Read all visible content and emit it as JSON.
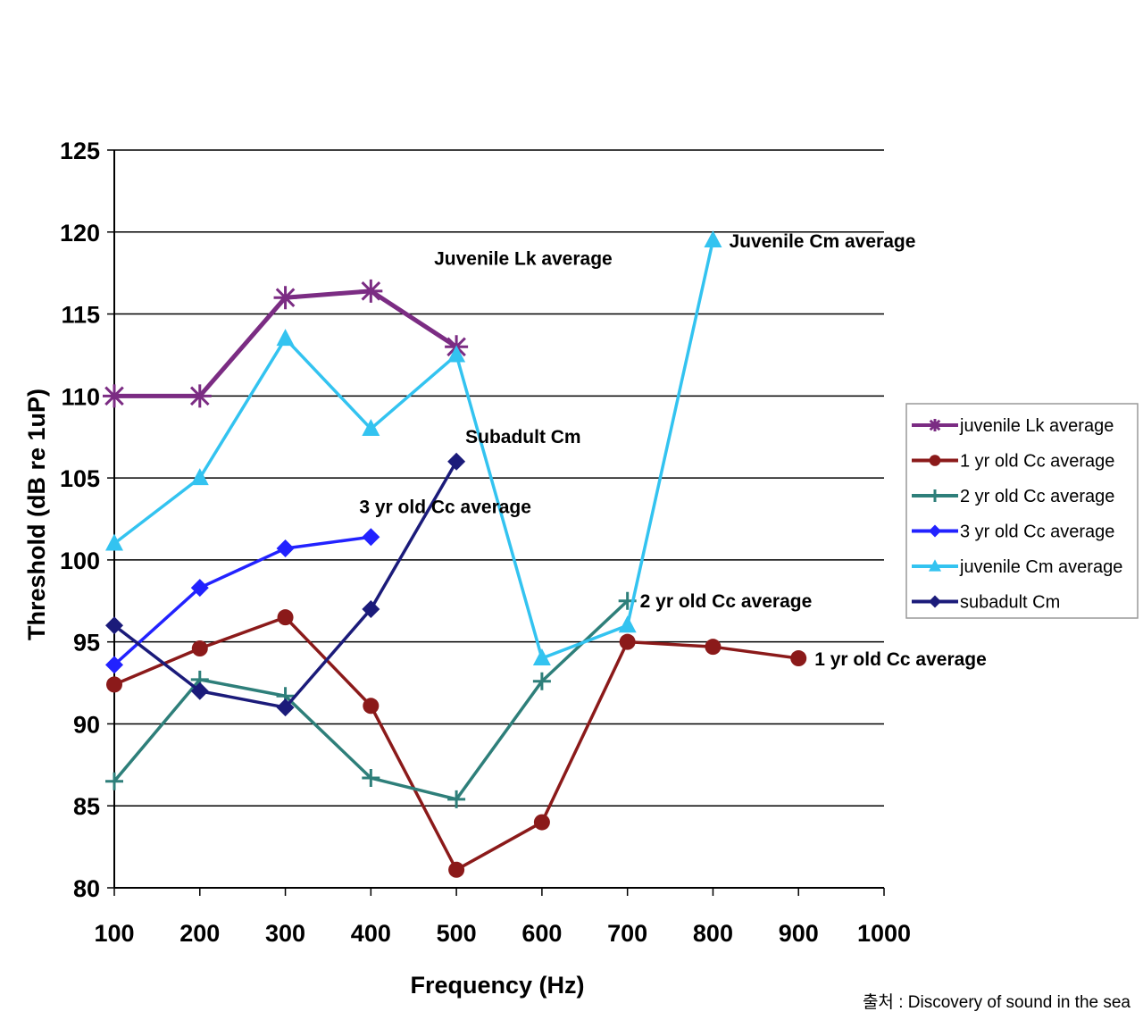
{
  "chart_data": {
    "type": "line",
    "title": "",
    "xlabel": "Frequency (Hz)",
    "ylabel": "Threshold (dB re 1uP)",
    "xlim": [
      100,
      1000
    ],
    "ylim": [
      80,
      125
    ],
    "x_ticks": [
      100,
      200,
      300,
      400,
      500,
      600,
      700,
      800,
      900,
      1000
    ],
    "y_ticks": [
      80,
      85,
      90,
      95,
      100,
      105,
      110,
      115,
      120,
      125
    ],
    "grid": "horizontal",
    "legend_position": "right",
    "series": [
      {
        "name": "juvenile Lk average",
        "color": "#7B2C83",
        "marker": "asterisk",
        "x": [
          100,
          200,
          300,
          400,
          500
        ],
        "y": [
          110,
          110,
          116,
          116.4,
          113
        ]
      },
      {
        "name": "1 yr old Cc average",
        "color": "#8B1A1A",
        "marker": "circle",
        "x": [
          100,
          200,
          300,
          400,
          500,
          600,
          700,
          800,
          900
        ],
        "y": [
          92.4,
          94.6,
          96.5,
          91.1,
          81.1,
          84,
          95,
          94.7,
          94
        ]
      },
      {
        "name": "2 yr old Cc average",
        "color": "#2E7F7A",
        "marker": "plus",
        "x": [
          100,
          200,
          300,
          400,
          500,
          600,
          700
        ],
        "y": [
          86.5,
          92.7,
          91.7,
          86.7,
          85.4,
          92.6,
          97.5
        ]
      },
      {
        "name": "3 yr old Cc average",
        "color": "#2222FF",
        "marker": "diamond",
        "x": [
          100,
          200,
          300,
          400
        ],
        "y": [
          93.6,
          98.3,
          100.7,
          101.4
        ]
      },
      {
        "name": "juvenile Cm average",
        "color": "#33C3F0",
        "marker": "triangle",
        "x": [
          100,
          200,
          300,
          400,
          500,
          600,
          700,
          800
        ],
        "y": [
          101,
          105,
          113.5,
          108,
          112.5,
          94,
          96,
          119.5
        ]
      },
      {
        "name": "subadult Cm",
        "color": "#1B1B7A",
        "marker": "diamond",
        "x": [
          100,
          200,
          300,
          400,
          500
        ],
        "y": [
          96,
          92,
          91,
          97,
          106
        ]
      }
    ],
    "annotations": [
      {
        "text": "Juvenile Cm average",
        "x": 800,
        "y": 119.5
      },
      {
        "text": "Juvenile Lk average",
        "x": 500,
        "y": 115.6
      },
      {
        "text": "Subadult Cm",
        "x": 500,
        "y": 106.2
      },
      {
        "text": "3 yr old Cc average",
        "x": 400,
        "y": 102.3
      },
      {
        "text": "2 yr old Cc average",
        "x": 700,
        "y": 97.6
      },
      {
        "text": "1 yr old Cc average",
        "x": 900,
        "y": 94
      }
    ]
  },
  "source_note": "출처 : Discovery of sound in the sea"
}
